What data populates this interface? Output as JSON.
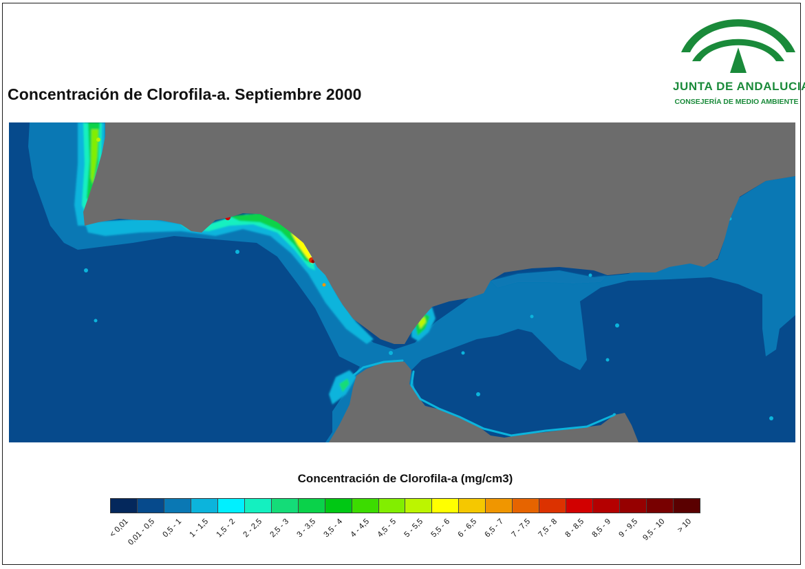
{
  "title": "Concentración de Clorofila-a. Septiembre 2000",
  "logo": {
    "name": "JUNTA DE ANDALUCIA",
    "department": "CONSEJERÍA DE MEDIO AMBIENTE",
    "color": "#1a8a3a"
  },
  "map": {
    "land_color": "#6c6c6c",
    "sea_base_color": "#064a8c"
  },
  "legend": {
    "title": "Concentración de Clorofila-a (mg/cm3)",
    "classes": [
      {
        "label": "< 0,01",
        "color": "#04285c"
      },
      {
        "label": "0,01 - 0,5",
        "color": "#064a8c"
      },
      {
        "label": "0,5 - 1",
        "color": "#0a78b4"
      },
      {
        "label": "1 - 1,5",
        "color": "#0cb4dc"
      },
      {
        "label": "1,5 - 2",
        "color": "#00f0ff"
      },
      {
        "label": "2 - 2,5",
        "color": "#14f0c0"
      },
      {
        "label": "2,5 - 3",
        "color": "#14dc78"
      },
      {
        "label": "3 - 3,5",
        "color": "#0ad24a"
      },
      {
        "label": "3,5 - 4",
        "color": "#00c814"
      },
      {
        "label": "4 - 4,5",
        "color": "#3cdc00"
      },
      {
        "label": "4,5 - 5",
        "color": "#82ee00"
      },
      {
        "label": "5 - 5,5",
        "color": "#bcf500"
      },
      {
        "label": "5,5 - 6",
        "color": "#ffff00"
      },
      {
        "label": "6 - 6,5",
        "color": "#f5c800"
      },
      {
        "label": "6,5 - 7",
        "color": "#f09600"
      },
      {
        "label": "7 - 7,5",
        "color": "#e66400"
      },
      {
        "label": "7,5 - 8",
        "color": "#dc3200"
      },
      {
        "label": "8 - 8,5",
        "color": "#d20000"
      },
      {
        "label": "8,5 - 9",
        "color": "#b40000"
      },
      {
        "label": "9 - 9,5",
        "color": "#960000"
      },
      {
        "label": "9,5 - 10",
        "color": "#780000"
      },
      {
        "label": "> 10",
        "color": "#5a0000"
      }
    ]
  }
}
